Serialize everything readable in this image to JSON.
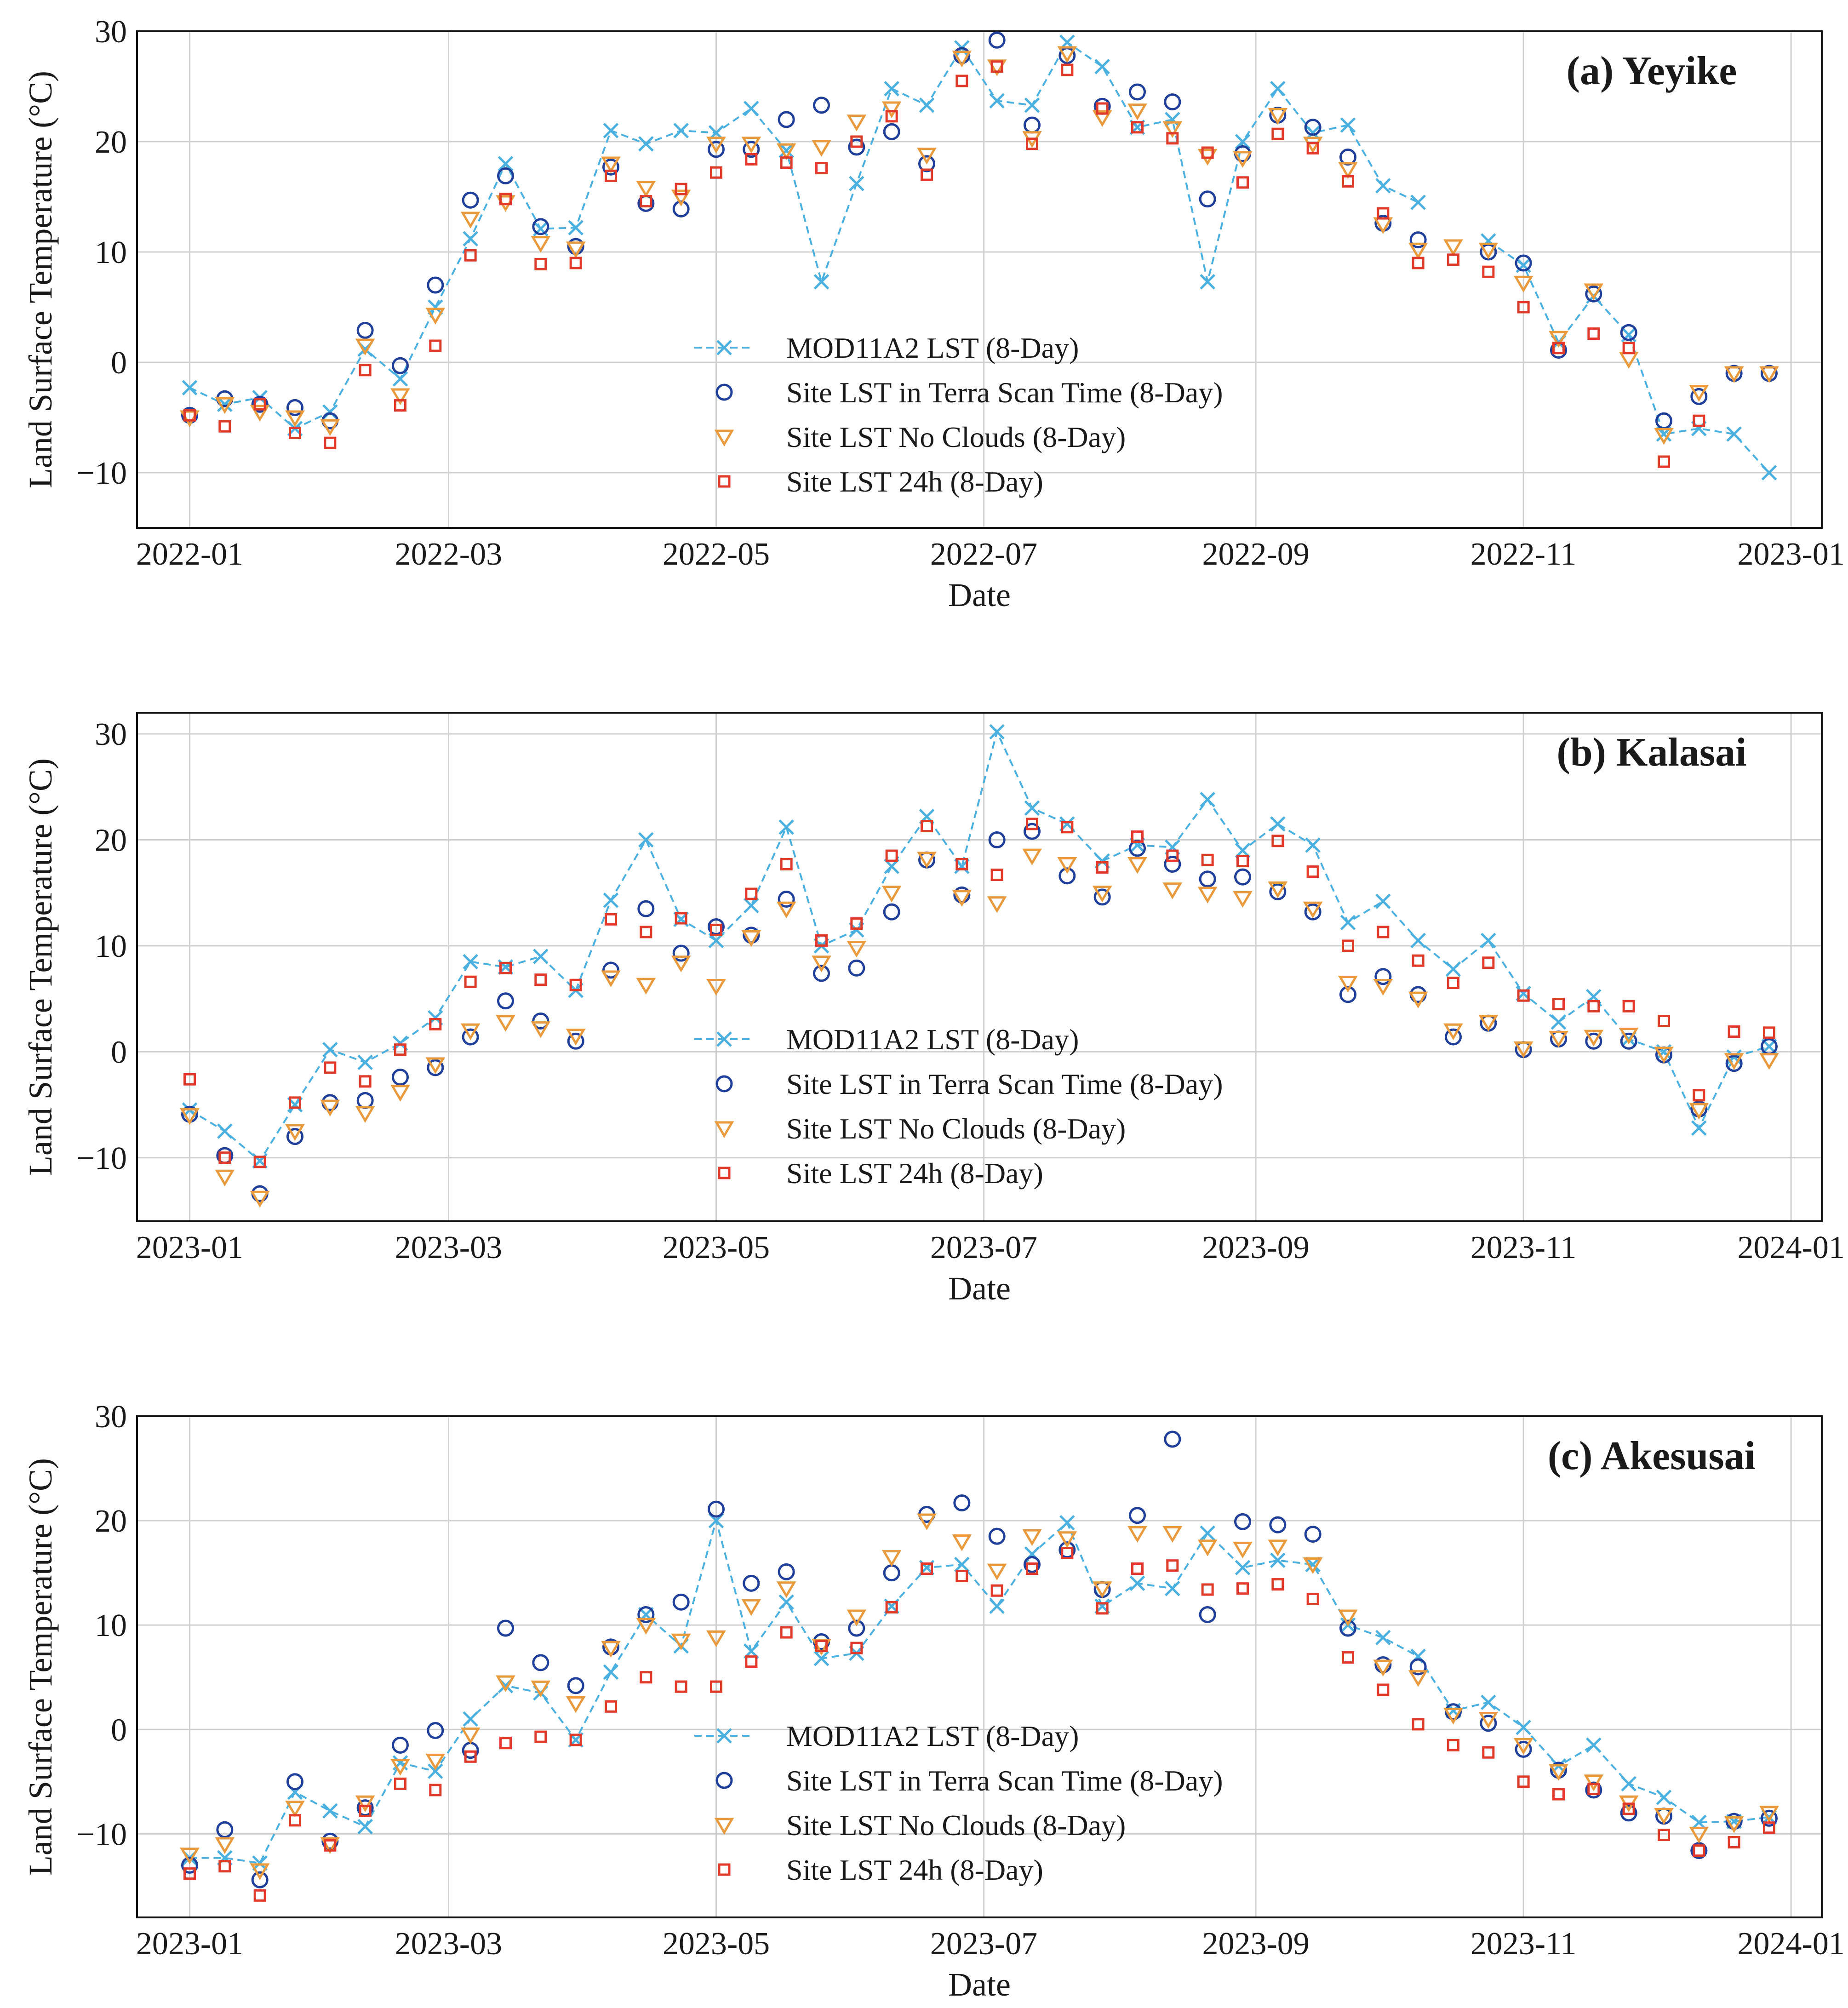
{
  "figure": {
    "legend_labels": [
      "MOD11A2 LST (8-Day)",
      "Site LST in Terra Scan Time (8-Day)",
      "Site LST No Clouds (8-Day)",
      "Site LST 24h (8-Day)"
    ],
    "colors": {
      "mod": "#4ab0e0",
      "terra": "#1f3f9a",
      "nocloud": "#e89a3c",
      "site24": "#e03a2a"
    }
  },
  "chart_data": [
    {
      "type": "line",
      "title": "(a) Yeyike",
      "xlabel": "Date",
      "ylabel": "Land Surface Temperature (°C)",
      "xlim": [
        -12,
        372
      ],
      "ylim": [
        -15,
        30
      ],
      "xticks": [
        0,
        59,
        120,
        181,
        243,
        304,
        365
      ],
      "xtick_labels": [
        "2022-01",
        "2022-03",
        "2022-05",
        "2022-07",
        "2022-09",
        "2022-11",
        "2023-01"
      ],
      "yticks": [
        -10,
        0,
        10,
        20,
        30
      ],
      "ytick_labels": [
        "−10",
        "0",
        "10",
        "20",
        "30"
      ],
      "x": [
        0,
        8,
        16,
        24,
        32,
        40,
        48,
        56,
        64,
        72,
        80,
        88,
        96,
        104,
        112,
        120,
        128,
        136,
        144,
        152,
        160,
        168,
        176,
        184,
        192,
        200,
        208,
        216,
        224,
        232,
        240,
        248,
        256,
        264,
        272,
        280,
        288,
        296,
        304,
        312,
        320,
        328,
        336,
        344,
        352,
        360
      ],
      "series": [
        {
          "name": "MOD11A2 LST (8-Day)",
          "values": [
            -2.3,
            -3.8,
            -3.2,
            -6.0,
            -4.5,
            1.2,
            -1.5,
            5.0,
            11.2,
            18.0,
            12.1,
            12.2,
            21.0,
            19.8,
            21.0,
            20.8,
            23.0,
            19.2,
            7.3,
            16.2,
            24.8,
            23.3,
            28.5,
            23.7,
            23.3,
            29.0,
            26.8,
            21.3,
            22.0,
            7.3,
            20.0,
            24.8,
            20.8,
            21.5,
            16.0,
            14.5,
            null,
            11.0,
            8.8,
            1.8,
            6.0,
            2.5,
            -6.5,
            -6.0,
            -6.5,
            -10.0
          ]
        },
        {
          "name": "Site LST in Terra Scan Time (8-Day)",
          "values": [
            -4.8,
            -3.3,
            -3.8,
            -4.1,
            -5.3,
            2.9,
            -0.3,
            7.0,
            14.7,
            16.9,
            12.3,
            10.5,
            17.7,
            14.4,
            13.9,
            19.3,
            19.3,
            22.0,
            23.3,
            19.5,
            20.9,
            18.0,
            27.8,
            29.2,
            21.5,
            27.8,
            23.2,
            24.5,
            23.6,
            14.8,
            18.9,
            22.4,
            21.3,
            18.6,
            12.6,
            11.1,
            null,
            10.0,
            9.0,
            1.1,
            6.2,
            2.7,
            -5.3,
            -3.1,
            -1.0,
            -1.0
          ]
        },
        {
          "name": "Site LST No Clouds (8-Day)",
          "values": [
            -5.0,
            -3.8,
            -4.5,
            -5.0,
            -5.8,
            1.5,
            -3.0,
            4.3,
            13.0,
            14.5,
            10.8,
            10.3,
            18.0,
            15.8,
            15.0,
            19.8,
            19.8,
            19.2,
            19.5,
            21.8,
            23.0,
            18.8,
            27.6,
            26.8,
            20.3,
            28.0,
            22.2,
            22.8,
            21.2,
            18.7,
            18.5,
            22.4,
            19.8,
            17.5,
            12.5,
            10.2,
            10.5,
            10.2,
            7.2,
            2.2,
            6.5,
            0.3,
            -6.6,
            -2.7,
            -1.0,
            -1.0
          ]
        },
        {
          "name": "Site LST 24h (8-Day)",
          "values": [
            -4.8,
            -5.8,
            -3.8,
            -6.4,
            -7.3,
            -0.7,
            -3.9,
            1.5,
            9.7,
            14.8,
            8.9,
            9.0,
            16.9,
            14.6,
            15.7,
            17.2,
            18.4,
            18.1,
            17.6,
            20.0,
            22.3,
            17.0,
            25.5,
            26.8,
            19.8,
            26.5,
            23.0,
            21.3,
            20.3,
            19.0,
            16.3,
            20.7,
            19.4,
            16.4,
            13.5,
            9.0,
            9.3,
            8.2,
            5.0,
            1.3,
            2.6,
            1.3,
            -9.0,
            -5.3,
            null,
            null
          ]
        }
      ]
    },
    {
      "type": "line",
      "title": "(b) Kalasai",
      "xlabel": "Date",
      "ylabel": "Land Surface Temperature (°C)",
      "xlim": [
        -12,
        372
      ],
      "ylim": [
        -16,
        32
      ],
      "xticks": [
        0,
        59,
        120,
        181,
        243,
        304,
        365
      ],
      "xtick_labels": [
        "2023-01",
        "2023-03",
        "2023-05",
        "2023-07",
        "2023-09",
        "2023-11",
        "2024-01"
      ],
      "yticks": [
        -10,
        0,
        10,
        20,
        30
      ],
      "ytick_labels": [
        "−10",
        "0",
        "10",
        "20",
        "30"
      ],
      "x": [
        0,
        8,
        16,
        24,
        32,
        40,
        48,
        56,
        64,
        72,
        80,
        88,
        96,
        104,
        112,
        120,
        128,
        136,
        144,
        152,
        160,
        168,
        176,
        184,
        192,
        200,
        208,
        216,
        224,
        232,
        240,
        248,
        256,
        264,
        272,
        280,
        288,
        296,
        304,
        312,
        320,
        328,
        336,
        344,
        352,
        360
      ],
      "series": [
        {
          "name": "MOD11A2 LST (8-Day)",
          "values": [
            -5.5,
            -7.5,
            -10.3,
            -5.0,
            0.2,
            -1.0,
            0.8,
            3.2,
            8.5,
            8.0,
            9.0,
            5.8,
            14.3,
            20.0,
            12.5,
            10.5,
            13.8,
            21.2,
            10.0,
            11.5,
            17.5,
            22.2,
            17.5,
            30.2,
            23.0,
            21.5,
            18.0,
            19.5,
            19.3,
            23.8,
            19.0,
            21.5,
            19.5,
            12.2,
            14.2,
            10.5,
            7.8,
            10.5,
            5.5,
            2.8,
            5.2,
            1.2,
            0.0,
            -7.2,
            -0.5,
            0.5
          ]
        },
        {
          "name": "Site LST in Terra Scan Time (8-Day)",
          "values": [
            -5.9,
            -9.8,
            -13.4,
            -8.0,
            -4.8,
            -4.6,
            -2.4,
            -1.5,
            1.4,
            4.8,
            2.9,
            1.0,
            7.7,
            13.5,
            9.3,
            11.8,
            11.0,
            14.4,
            7.4,
            7.9,
            13.2,
            18.1,
            14.8,
            20.0,
            20.8,
            16.6,
            14.6,
            19.2,
            17.7,
            16.3,
            16.5,
            15.1,
            13.2,
            5.4,
            7.1,
            5.4,
            1.4,
            2.7,
            0.2,
            1.2,
            1.0,
            1.0,
            -0.3,
            -5.4,
            -1.1,
            0.5
          ]
        },
        {
          "name": "Site LST No Clouds (8-Day)",
          "values": [
            -6.0,
            -11.8,
            -13.8,
            -7.5,
            -5.2,
            -5.8,
            -3.8,
            -1.2,
            2.0,
            2.8,
            2.2,
            1.5,
            7.0,
            6.3,
            8.4,
            6.2,
            10.8,
            13.5,
            8.4,
            9.8,
            15.0,
            18.2,
            14.6,
            14.0,
            18.5,
            17.7,
            15.0,
            17.7,
            15.3,
            14.9,
            14.5,
            15.4,
            13.5,
            6.5,
            6.2,
            5.0,
            2.0,
            2.8,
            0.3,
            1.3,
            1.4,
            1.6,
            -0.2,
            -5.5,
            -0.8,
            -0.8
          ]
        },
        {
          "name": "Site LST 24h (8-Day)",
          "values": [
            -2.6,
            -10.0,
            -10.4,
            -4.8,
            -1.5,
            -2.8,
            0.2,
            2.6,
            6.6,
            7.9,
            6.8,
            6.3,
            12.5,
            11.3,
            12.6,
            11.5,
            14.9,
            17.7,
            10.5,
            12.1,
            18.5,
            21.3,
            17.7,
            16.7,
            21.5,
            21.2,
            17.4,
            20.3,
            18.5,
            18.1,
            18.0,
            19.9,
            17.0,
            10.0,
            11.3,
            8.6,
            6.5,
            8.4,
            5.3,
            4.5,
            4.3,
            4.3,
            2.9,
            -4.1,
            1.9,
            1.8
          ]
        }
      ]
    },
    {
      "type": "line",
      "title": "(c) Akesusai",
      "xlabel": "Date",
      "ylabel": "Land Surface Temperature (°C)",
      "xlim": [
        -12,
        372
      ],
      "ylim": [
        -18,
        30
      ],
      "xticks": [
        0,
        59,
        120,
        181,
        243,
        304,
        365
      ],
      "xtick_labels": [
        "2023-01",
        "2023-03",
        "2023-05",
        "2023-07",
        "2023-09",
        "2023-11",
        "2024-01"
      ],
      "yticks": [
        -10,
        0,
        10,
        20,
        30
      ],
      "ytick_labels": [
        "−10",
        "0",
        "10",
        "20",
        "30"
      ],
      "x": [
        0,
        8,
        16,
        24,
        32,
        40,
        48,
        56,
        64,
        72,
        80,
        88,
        96,
        104,
        112,
        120,
        128,
        136,
        144,
        152,
        160,
        168,
        176,
        184,
        192,
        200,
        208,
        216,
        224,
        232,
        240,
        248,
        256,
        264,
        272,
        280,
        288,
        296,
        304,
        312,
        320,
        328,
        336,
        344,
        352,
        360
      ],
      "series": [
        {
          "name": "MOD11A2 LST (8-Day)",
          "values": [
            -12.3,
            -12.3,
            -12.8,
            -6.0,
            -7.8,
            -9.3,
            -3.2,
            -4.0,
            1.0,
            4.2,
            3.5,
            -1.0,
            5.5,
            11.0,
            8.0,
            20.0,
            7.5,
            12.2,
            6.8,
            7.3,
            11.8,
            15.5,
            15.8,
            11.8,
            16.8,
            19.8,
            11.8,
            14.0,
            13.5,
            18.8,
            15.5,
            16.2,
            15.8,
            10.0,
            8.8,
            7.0,
            1.8,
            2.6,
            0.2,
            -3.5,
            -1.5,
            -5.2,
            -6.5,
            -8.9,
            -8.8,
            -8.4
          ]
        },
        {
          "name": "Site LST in Terra Scan Time (8-Day)",
          "values": [
            -13.0,
            -9.6,
            -14.4,
            -5.0,
            -10.7,
            -7.5,
            -1.5,
            -0.1,
            -2.0,
            9.7,
            6.4,
            4.2,
            7.9,
            11.0,
            12.2,
            21.1,
            14.0,
            15.1,
            8.4,
            9.7,
            15.0,
            20.6,
            21.7,
            18.5,
            15.8,
            17.2,
            13.4,
            20.5,
            27.8,
            11.0,
            19.9,
            19.6,
            18.7,
            9.7,
            6.2,
            6.0,
            1.7,
            0.6,
            -1.9,
            -3.9,
            -5.8,
            -8.0,
            -8.3,
            -11.6,
            -8.8,
            -8.5
          ]
        },
        {
          "name": "Site LST No Clouds (8-Day)",
          "values": [
            -12.0,
            -11.0,
            -13.5,
            -7.5,
            -11.0,
            -7.0,
            -3.5,
            -3.0,
            -0.5,
            4.5,
            4.0,
            2.5,
            7.8,
            10.0,
            8.5,
            8.8,
            11.8,
            13.5,
            8.0,
            10.8,
            16.5,
            20.0,
            18.0,
            15.2,
            18.5,
            18.3,
            13.5,
            18.8,
            18.8,
            17.5,
            17.3,
            17.5,
            15.8,
            10.8,
            6.0,
            5.0,
            1.4,
            1.0,
            -1.5,
            -4.0,
            -5.0,
            -7.0,
            -8.2,
            -10.0,
            -9.0,
            -8.0
          ]
        },
        {
          "name": "Site LST 24h (8-Day)",
          "values": [
            -13.8,
            -13.1,
            -15.9,
            -8.7,
            -11.1,
            -7.8,
            -5.2,
            -5.8,
            -2.6,
            -1.3,
            -0.7,
            -1.0,
            2.2,
            5.0,
            4.1,
            4.1,
            6.5,
            9.3,
            8.0,
            7.8,
            11.7,
            15.4,
            14.7,
            13.3,
            15.4,
            16.9,
            11.6,
            15.4,
            15.7,
            13.4,
            13.5,
            13.9,
            12.5,
            6.9,
            3.8,
            0.5,
            -1.5,
            -2.2,
            -5.0,
            -6.2,
            -5.7,
            -7.6,
            -10.1,
            -11.6,
            -10.8,
            -9.4
          ]
        }
      ]
    }
  ]
}
